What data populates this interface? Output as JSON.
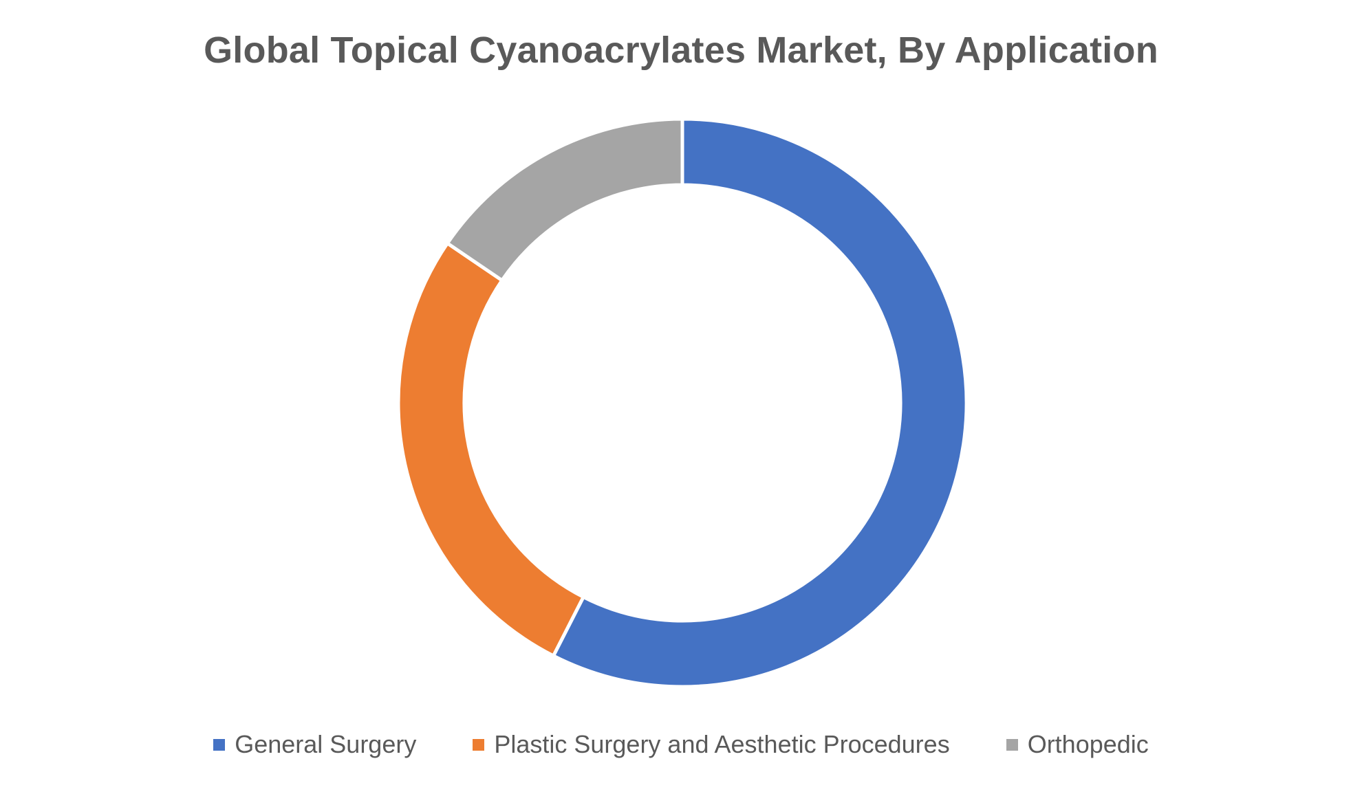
{
  "chart_data": {
    "type": "pie",
    "variant": "donut",
    "title": "Global Topical Cyanoacrylates Market, By Application",
    "series": [
      {
        "name": "General Surgery",
        "value": 57.5,
        "color": "#4472C4"
      },
      {
        "name": "Plastic Surgery and Aesthetic Procedures",
        "value": 27.0,
        "color": "#ED7D31"
      },
      {
        "name": "Orthopedic",
        "value": 15.5,
        "color": "#A5A5A5"
      }
    ],
    "legend_position": "bottom",
    "data_labels": false
  }
}
